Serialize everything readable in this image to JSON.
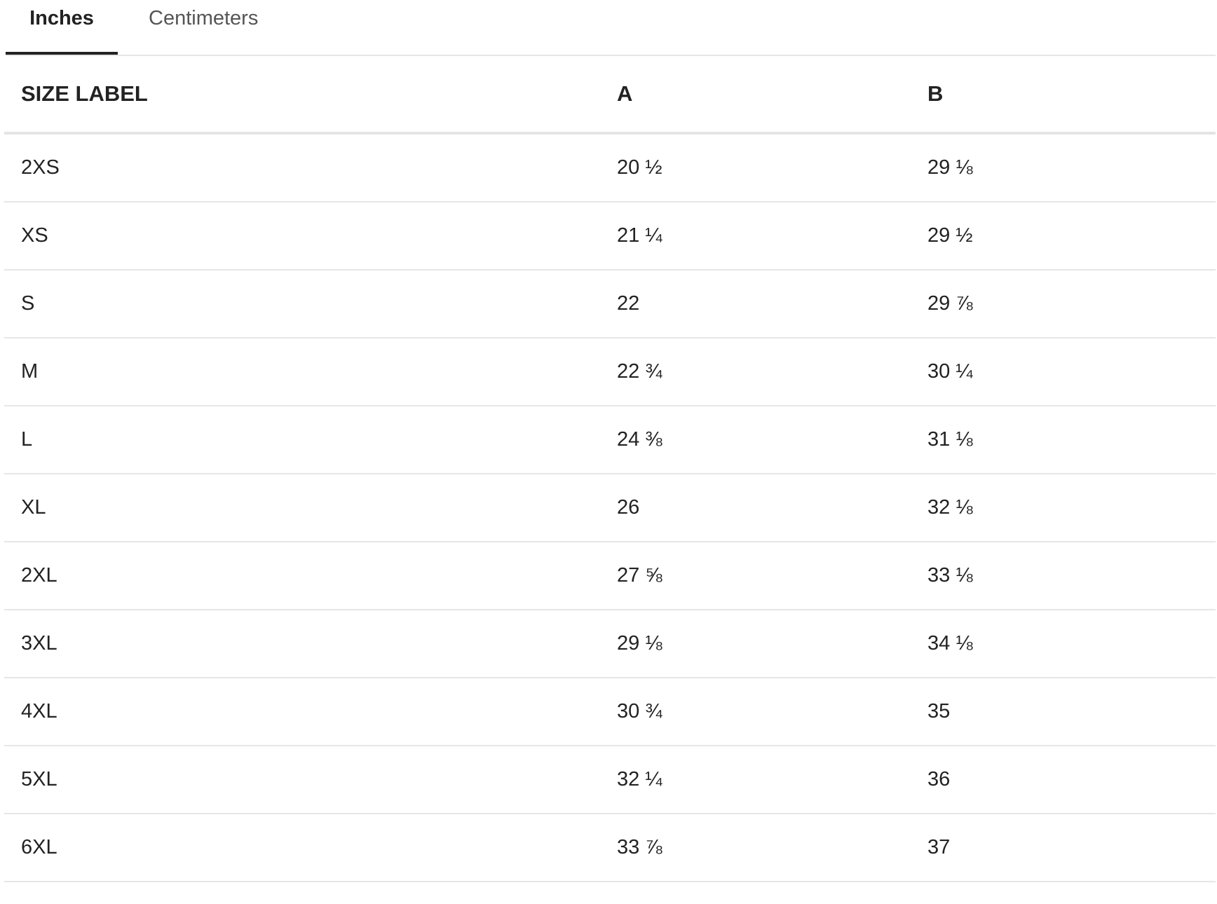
{
  "tabs": [
    {
      "label": "Inches",
      "active": true
    },
    {
      "label": "Centimeters",
      "active": false
    }
  ],
  "table": {
    "headers": [
      "SIZE LABEL",
      "A",
      "B"
    ],
    "rows": [
      [
        "2XS",
        "20 ½",
        "29 ⅛"
      ],
      [
        "XS",
        "21 ¼",
        "29 ½"
      ],
      [
        "S",
        "22",
        "29 ⅞"
      ],
      [
        "M",
        "22 ¾",
        "30 ¼"
      ],
      [
        "L",
        "24 ⅜",
        "31 ⅛"
      ],
      [
        "XL",
        "26",
        "32 ⅛"
      ],
      [
        "2XL",
        "27 ⅝",
        "33 ⅛"
      ],
      [
        "3XL",
        "29 ⅛",
        "34 ⅛"
      ],
      [
        "4XL",
        "30 ¾",
        "35"
      ],
      [
        "5XL",
        "32 ¼",
        "36"
      ],
      [
        "6XL",
        "33 ⅞",
        "37"
      ]
    ]
  }
}
